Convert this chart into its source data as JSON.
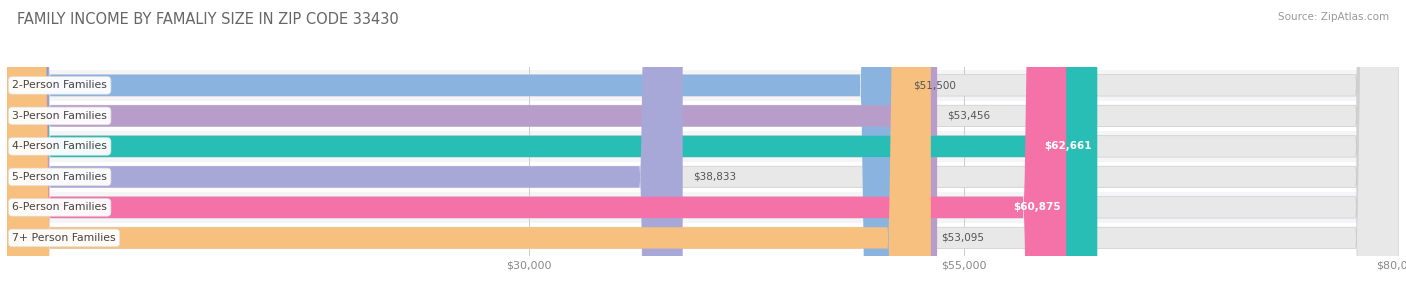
{
  "title": "FAMILY INCOME BY FAMALIY SIZE IN ZIP CODE 33430",
  "source": "Source: ZipAtlas.com",
  "categories": [
    "2-Person Families",
    "3-Person Families",
    "4-Person Families",
    "5-Person Families",
    "6-Person Families",
    "7+ Person Families"
  ],
  "values": [
    51500,
    53456,
    62661,
    38833,
    60875,
    53095
  ],
  "labels": [
    "$51,500",
    "$53,456",
    "$62,661",
    "$38,833",
    "$60,875",
    "$53,095"
  ],
  "bar_colors": [
    "#8ab4df",
    "#b89dca",
    "#28bdb5",
    "#a8a8d8",
    "#f472a8",
    "#f7c07e"
  ],
  "bar_bg_color": "#e8e8e8",
  "label_inside": [
    false,
    false,
    true,
    false,
    true,
    false
  ],
  "xlim": [
    0,
    80000
  ],
  "xticks": [
    30000,
    55000,
    80000
  ],
  "xticklabels": [
    "$30,000",
    "$55,000",
    "$80,000"
  ],
  "title_fontsize": 10.5,
  "source_fontsize": 7.5,
  "bar_height": 0.7,
  "background_color": "#ffffff",
  "row_bg_colors": [
    "#f5f5f8",
    "#ffffff",
    "#f5f5f8",
    "#ffffff",
    "#f5f5f8",
    "#ffffff"
  ]
}
